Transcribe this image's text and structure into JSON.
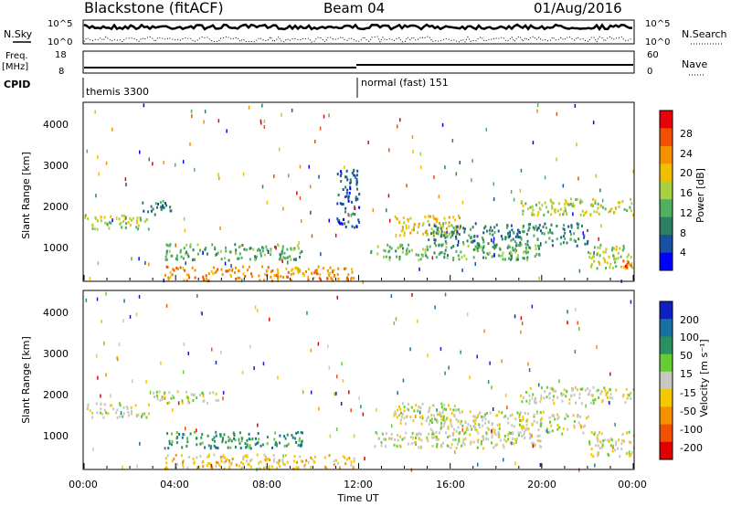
{
  "header": {
    "title": "Blackstone (fitACF)",
    "beam": "Beam 04",
    "date": "01/Aug/2016"
  },
  "summary": {
    "nsky_label": "N.Sky",
    "nsearch_label": "N.Search",
    "freq_label": "Freq.",
    "freq_unit": "[MHz]",
    "nave_label": "Nave",
    "cpid_label": "CPID",
    "left_ticks_top": [
      "10^5",
      "10^0"
    ],
    "right_ticks_top": [
      "10^5",
      "10^0"
    ],
    "freq_ticks": [
      "18",
      "8"
    ],
    "nave_ticks": [
      "60",
      "0"
    ],
    "cpid_segments": [
      {
        "label": "themis 3300",
        "start_hour": 0
      },
      {
        "label": "normal (fast) 151",
        "start_hour": 12
      }
    ]
  },
  "axes": {
    "y_label": "Slant Range [km]",
    "y_ticks": [
      "4000",
      "3000",
      "2000",
      "1000"
    ],
    "x_ticks": [
      "00:00",
      "04:00",
      "08:00",
      "12:00",
      "16:00",
      "20:00",
      "00:00"
    ],
    "x_label": "Time UT"
  },
  "power_colorbar": {
    "label": "Power [dB]",
    "ticks": [
      "28",
      "24",
      "20",
      "16",
      "12",
      "8",
      "4"
    ],
    "colors": [
      "#e8000b",
      "#f05000",
      "#f59000",
      "#f0c000",
      "#a8d040",
      "#50b060",
      "#2a8060",
      "#1a50a0",
      "#0000ff"
    ]
  },
  "velocity_colorbar": {
    "label": "Velocity [m s⁻¹]",
    "ticks": [
      "200",
      "100",
      "50",
      "15",
      "-15",
      "-50",
      "-100",
      "-200"
    ],
    "colors": [
      "#1020c0",
      "#1870a0",
      "#2a9060",
      "#66cc33",
      "#c8c8c0",
      "#f5c800",
      "#f59000",
      "#f05000",
      "#e00000"
    ]
  },
  "chart_data": [
    {
      "type": "heatmap",
      "name": "power",
      "x_hours": [
        0,
        24
      ],
      "y_range_km": [
        180,
        4500
      ],
      "bands": [
        {
          "t0": 0,
          "t1": 2.8,
          "r0": 1450,
          "r1": 1800,
          "level": 4
        },
        {
          "t0": 2.5,
          "t1": 3.8,
          "r0": 1800,
          "r1": 2150,
          "level": 2
        },
        {
          "t0": 3.5,
          "t1": 9.5,
          "r0": 700,
          "r1": 1100,
          "level": 3
        },
        {
          "t0": 3.5,
          "t1": 11.8,
          "r0": 200,
          "r1": 550,
          "level": 6
        },
        {
          "t0": 12.5,
          "t1": 20,
          "r0": 700,
          "r1": 1100,
          "level": 3
        },
        {
          "t0": 13.5,
          "t1": 16.5,
          "r0": 1300,
          "r1": 1800,
          "level": 5
        },
        {
          "t0": 15,
          "t1": 22,
          "r0": 1050,
          "r1": 1600,
          "level": 2
        },
        {
          "t0": 19,
          "t1": 24,
          "r0": 1800,
          "r1": 2200,
          "level": 4
        },
        {
          "t0": 22,
          "t1": 24,
          "r0": 500,
          "r1": 1100,
          "level": 4
        },
        {
          "t0": 23.5,
          "t1": 24,
          "r0": 450,
          "r1": 700,
          "level": 8
        },
        {
          "t0": 11,
          "t1": 12,
          "r0": 1500,
          "r1": 2900,
          "level": 1
        }
      ]
    },
    {
      "type": "heatmap",
      "name": "velocity",
      "x_hours": [
        0,
        24
      ],
      "y_range_km": [
        180,
        4500
      ],
      "bands": [
        {
          "t0": 0,
          "t1": 2.8,
          "r0": 1450,
          "r1": 1800,
          "level": 4
        },
        {
          "t0": 3,
          "t1": 6,
          "r0": 1800,
          "r1": 2100,
          "level": 4
        },
        {
          "t0": 3.5,
          "t1": 9.5,
          "r0": 700,
          "r1": 1100,
          "level": 6
        },
        {
          "t0": 3.5,
          "t1": 11.8,
          "r0": 200,
          "r1": 550,
          "level": 3
        },
        {
          "t0": 12.5,
          "t1": 20,
          "r0": 700,
          "r1": 1100,
          "level": 4
        },
        {
          "t0": 13.5,
          "t1": 16.5,
          "r0": 1300,
          "r1": 1800,
          "level": 4
        },
        {
          "t0": 15,
          "t1": 22,
          "r0": 1050,
          "r1": 1600,
          "level": 4
        },
        {
          "t0": 19,
          "t1": 24,
          "r0": 1800,
          "r1": 2200,
          "level": 4
        },
        {
          "t0": 22,
          "t1": 24,
          "r0": 500,
          "r1": 1100,
          "level": 4
        }
      ]
    }
  ]
}
